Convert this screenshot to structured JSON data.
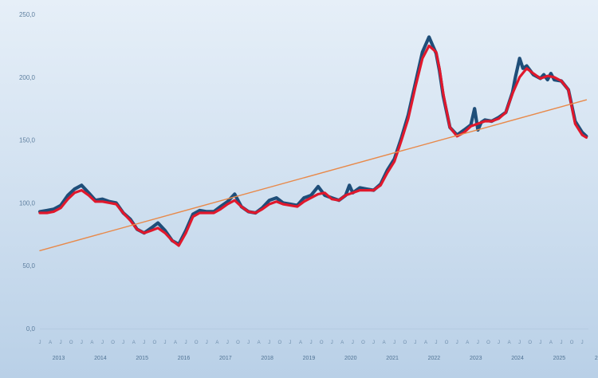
{
  "chart_data": {
    "type": "line",
    "title": "",
    "xlabel": "",
    "ylabel": "",
    "ylim": [
      0,
      250
    ],
    "yticks": [
      "0,0",
      "50,0",
      "100,0",
      "150,0",
      "200,0",
      "250,0"
    ],
    "xlim": [
      2013,
      2026.15
    ],
    "year_labels": [
      {
        "year": 2013,
        "label": "2013"
      },
      {
        "year": 2014,
        "label": "2014"
      },
      {
        "year": 2015,
        "label": "2015"
      },
      {
        "year": 2016,
        "label": "2016"
      },
      {
        "year": 2017,
        "label": "2017"
      },
      {
        "year": 2018,
        "label": "2018"
      },
      {
        "year": 2019,
        "label": "2019"
      },
      {
        "year": 2020,
        "label": "2020"
      },
      {
        "year": 2021,
        "label": "2021"
      },
      {
        "year": 2022,
        "label": "2022"
      },
      {
        "year": 2023,
        "label": "2023"
      },
      {
        "year": 2024,
        "label": "2024"
      },
      {
        "year": 2025,
        "label": "2025"
      },
      {
        "year": 2026,
        "label": "2026"
      }
    ],
    "month_tick_letters": [
      "J",
      "A",
      "J",
      "O"
    ],
    "series": [
      {
        "color": "#1f4e79",
        "x": [
          2013.0,
          2013.17,
          2013.33,
          2013.5,
          2013.67,
          2013.83,
          2014.0,
          2014.17,
          2014.33,
          2014.5,
          2014.67,
          2014.83,
          2015.0,
          2015.17,
          2015.33,
          2015.5,
          2015.67,
          2015.83,
          2016.0,
          2016.17,
          2016.33,
          2016.5,
          2016.67,
          2016.83,
          2017.0,
          2017.17,
          2017.33,
          2017.5,
          2017.67,
          2017.83,
          2018.0,
          2018.17,
          2018.33,
          2018.5,
          2018.67,
          2018.83,
          2019.0,
          2019.17,
          2019.33,
          2019.42,
          2019.5,
          2019.67,
          2019.83,
          2020.0,
          2020.17,
          2020.33,
          2020.42,
          2020.5,
          2020.67,
          2020.83,
          2021.0,
          2021.17,
          2021.33,
          2021.5,
          2021.67,
          2021.83,
          2022.0,
          2022.17,
          2022.33,
          2022.42,
          2022.5,
          2022.58,
          2022.67,
          2022.83,
          2023.0,
          2023.17,
          2023.33,
          2023.42,
          2023.5,
          2023.58,
          2023.67,
          2023.83,
          2024.0,
          2024.17,
          2024.33,
          2024.4,
          2024.5,
          2024.58,
          2024.67,
          2024.83,
          2025.0,
          2025.08,
          2025.17,
          2025.25,
          2025.33,
          2025.5,
          2025.67,
          2025.83,
          2026.0,
          2026.1
        ],
        "y": [
          93,
          94,
          95,
          98,
          106,
          111,
          114,
          108,
          102,
          103,
          101,
          100,
          92,
          87,
          79,
          76,
          80,
          84,
          78,
          70,
          67,
          78,
          91,
          94,
          93,
          93,
          97,
          101,
          107,
          97,
          93,
          92,
          96,
          102,
          104,
          100,
          99,
          98,
          104,
          105,
          106,
          113,
          106,
          104,
          102,
          106,
          114,
          108,
          112,
          111,
          110,
          115,
          126,
          135,
          152,
          170,
          195,
          220,
          232,
          225,
          219,
          205,
          185,
          160,
          154,
          158,
          162,
          175,
          158,
          164,
          166,
          165,
          168,
          172,
          188,
          200,
          215,
          207,
          209,
          202,
          199,
          202,
          198,
          203,
          198,
          197,
          190,
          165,
          156,
          153
        ]
      },
      {
        "color": "#e0182c",
        "x": [
          2013.0,
          2013.17,
          2013.33,
          2013.5,
          2013.67,
          2013.83,
          2014.0,
          2014.17,
          2014.33,
          2014.5,
          2014.67,
          2014.83,
          2015.0,
          2015.17,
          2015.33,
          2015.5,
          2015.67,
          2015.83,
          2016.0,
          2016.17,
          2016.33,
          2016.5,
          2016.67,
          2016.83,
          2017.0,
          2017.17,
          2017.33,
          2017.5,
          2017.67,
          2017.83,
          2018.0,
          2018.17,
          2018.33,
          2018.5,
          2018.67,
          2018.83,
          2019.0,
          2019.17,
          2019.33,
          2019.5,
          2019.67,
          2019.83,
          2020.0,
          2020.17,
          2020.33,
          2020.5,
          2020.67,
          2020.83,
          2021.0,
          2021.17,
          2021.33,
          2021.5,
          2021.67,
          2021.83,
          2022.0,
          2022.17,
          2022.33,
          2022.5,
          2022.58,
          2022.67,
          2022.83,
          2023.0,
          2023.17,
          2023.33,
          2023.5,
          2023.67,
          2023.83,
          2024.0,
          2024.17,
          2024.33,
          2024.5,
          2024.67,
          2024.83,
          2025.0,
          2025.17,
          2025.33,
          2025.5,
          2025.67,
          2025.83,
          2026.0,
          2026.1
        ],
        "y": [
          92,
          92,
          93,
          96,
          103,
          108,
          110,
          106,
          101,
          101,
          100,
          99,
          92,
          86,
          79,
          76,
          78,
          80,
          76,
          70,
          66,
          76,
          89,
          92,
          92,
          92,
          95,
          99,
          102,
          97,
          93,
          92,
          95,
          99,
          101,
          99,
          98,
          97,
          101,
          104,
          107,
          108,
          103,
          102,
          106,
          108,
          110,
          110,
          110,
          114,
          124,
          133,
          150,
          167,
          192,
          215,
          225,
          220,
          207,
          187,
          160,
          153,
          156,
          161,
          163,
          165,
          165,
          167,
          172,
          187,
          200,
          207,
          203,
          199,
          201,
          200,
          197,
          190,
          163,
          154,
          152
        ]
      },
      {
        "color": "#e8894a",
        "x": [
          2013.0,
          2026.1
        ],
        "y": [
          62,
          182
        ]
      }
    ]
  }
}
